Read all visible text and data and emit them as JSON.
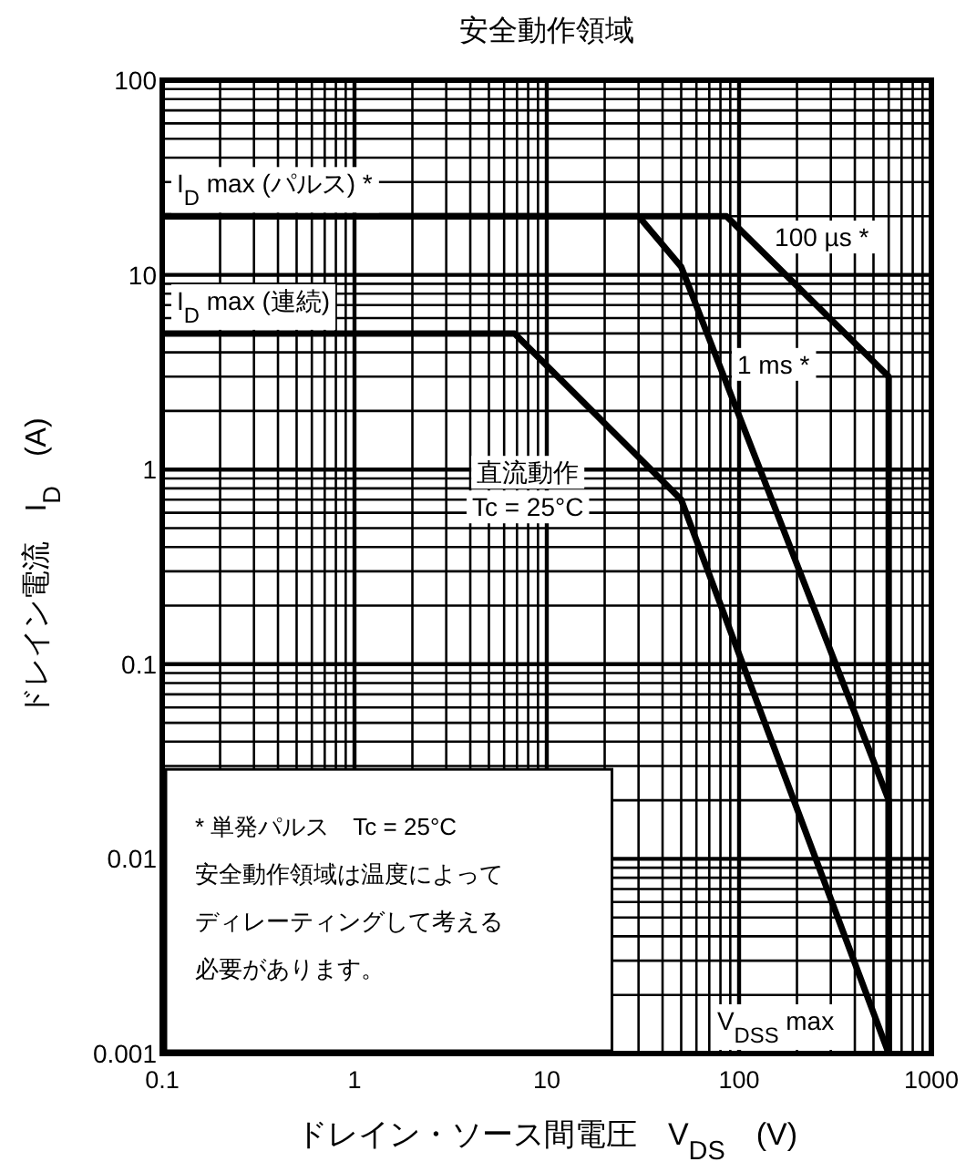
{
  "chart_data": {
    "type": "line",
    "title": "安全動作領域",
    "xlabel": "ドレイン・ソース間電圧　V$_{DS}$　(V)",
    "ylabel": "ドレイン電流　I$_{D}$　(A)",
    "log": "xy",
    "xlim": [
      0.1,
      1000
    ],
    "ylim": [
      0.001,
      100
    ],
    "xticks": [
      0.1,
      1,
      10,
      100,
      1000
    ],
    "yticks": [
      0.001,
      0.01,
      0.1,
      1,
      10,
      100
    ],
    "grid": true,
    "marker": "none",
    "line_style": "solid",
    "series": [
      {
        "name": "100 µs *",
        "color": "#000000",
        "x": [
          0.1,
          86,
          600,
          600
        ],
        "values": [
          20,
          20,
          3,
          0.001
        ]
      },
      {
        "name": "1 ms *",
        "color": "#000000",
        "x": [
          0.1,
          30,
          50,
          600,
          600
        ],
        "values": [
          20,
          20,
          11,
          0.02,
          0.001
        ]
      },
      {
        "name": "直流動作\nTc = 25°C",
        "color": "#000000",
        "x": [
          0.1,
          6.8,
          50,
          600
        ],
        "values": [
          5,
          5,
          0.7,
          0.001
        ]
      }
    ],
    "annotations": [
      "I$_{D}$ max (パルス) *",
      "I$_{D}$ max (連続)",
      "V$_{DSS}$ max",
      "* 単発パルス　Tc = 25°C",
      "安全動作領域は温度によってディレーティングして考える必要があります。"
    ]
  }
}
